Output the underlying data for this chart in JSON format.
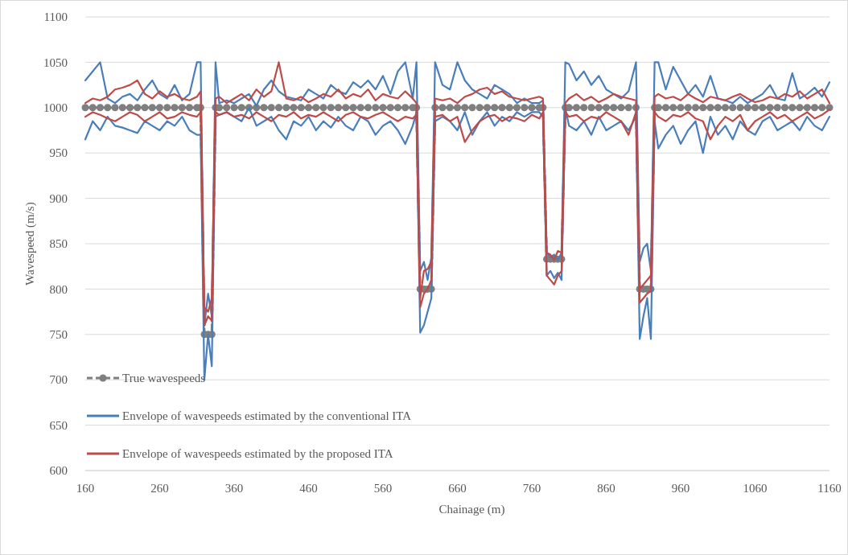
{
  "chart_data": {
    "type": "line",
    "xlabel": "Chainage (m)",
    "ylabel": "Wavespeed (m/s)",
    "x": [
      160,
      170,
      180,
      190,
      200,
      210,
      220,
      230,
      240,
      250,
      260,
      270,
      280,
      290,
      300,
      310,
      315,
      320,
      325,
      330,
      335,
      340,
      350,
      360,
      370,
      380,
      390,
      400,
      410,
      420,
      430,
      440,
      450,
      460,
      470,
      480,
      490,
      500,
      510,
      520,
      530,
      540,
      550,
      560,
      570,
      580,
      590,
      600,
      605,
      610,
      615,
      620,
      625,
      630,
      640,
      650,
      660,
      670,
      680,
      690,
      700,
      710,
      720,
      730,
      740,
      750,
      760,
      770,
      775,
      780,
      785,
      790,
      795,
      800,
      805,
      810,
      820,
      830,
      840,
      850,
      860,
      870,
      880,
      890,
      900,
      905,
      910,
      915,
      920,
      925,
      930,
      940,
      950,
      960,
      970,
      980,
      990,
      1000,
      1010,
      1020,
      1030,
      1040,
      1050,
      1060,
      1070,
      1080,
      1090,
      1100,
      1110,
      1120,
      1130,
      1140,
      1150,
      1160
    ],
    "series": [
      {
        "name": "True wavespeeds",
        "color": "#7f7f7f",
        "marker": "circle",
        "line_style": "dashed",
        "values": [
          1000,
          1000,
          1000,
          1000,
          1000,
          1000,
          1000,
          1000,
          1000,
          1000,
          1000,
          1000,
          1000,
          1000,
          1000,
          1000,
          1000,
          750,
          750,
          750,
          1000,
          1000,
          1000,
          1000,
          1000,
          1000,
          1000,
          1000,
          1000,
          1000,
          1000,
          1000,
          1000,
          1000,
          1000,
          1000,
          1000,
          1000,
          1000,
          1000,
          1000,
          1000,
          1000,
          1000,
          1000,
          1000,
          1000,
          1000,
          1000,
          800,
          800,
          800,
          800,
          1000,
          1000,
          1000,
          1000,
          1000,
          1000,
          1000,
          1000,
          1000,
          1000,
          1000,
          1000,
          1000,
          1000,
          1000,
          1000,
          833,
          833,
          833,
          833,
          833,
          1000,
          1000,
          1000,
          1000,
          1000,
          1000,
          1000,
          1000,
          1000,
          1000,
          1000,
          800,
          800,
          800,
          800,
          1000,
          1000,
          1000,
          1000,
          1000,
          1000,
          1000,
          1000,
          1000,
          1000,
          1000,
          1000,
          1000,
          1000,
          1000,
          1000,
          1000,
          1000,
          1000,
          1000,
          1000,
          1000,
          1000,
          1000,
          1000
        ]
      },
      {
        "name": "Envelope of wavespeeds estimated by the conventional ITA",
        "color": "#4a7ebb",
        "values": [
          1030,
          1040,
          1050,
          1010,
          1005,
          1012,
          1015,
          1008,
          1020,
          1030,
          1015,
          1010,
          1025,
          1008,
          1015,
          1050,
          1050,
          760,
          795,
          770,
          1050,
          1005,
          1008,
          1005,
          1010,
          1015,
          1002,
          1020,
          1030,
          1018,
          1012,
          1010,
          1008,
          1020,
          1015,
          1010,
          1025,
          1018,
          1015,
          1028,
          1022,
          1030,
          1020,
          1035,
          1015,
          1040,
          1050,
          1010,
          1050,
          820,
          830,
          810,
          835,
          1050,
          1025,
          1020,
          1050,
          1030,
          1020,
          1015,
          1010,
          1025,
          1020,
          1015,
          1005,
          1010,
          1005,
          1005,
          1008,
          840,
          835,
          838,
          832,
          840,
          1050,
          1048,
          1030,
          1040,
          1025,
          1035,
          1020,
          1015,
          1010,
          1018,
          1050,
          830,
          845,
          850,
          820,
          1050,
          1050,
          1020,
          1045,
          1030,
          1015,
          1025,
          1012,
          1035,
          1010,
          1008,
          1005,
          1012,
          1005,
          1010,
          1015,
          1025,
          1010,
          1008,
          1038,
          1010,
          1015,
          1022,
          1012,
          1028
        ]
      },
      {
        "color": "#4a7ebb",
        "values": [
          965,
          985,
          975,
          990,
          980,
          978,
          975,
          972,
          985,
          980,
          975,
          985,
          980,
          990,
          975,
          970,
          970,
          700,
          750,
          715,
          990,
          992,
          995,
          990,
          985,
          1000,
          980,
          985,
          990,
          975,
          965,
          985,
          980,
          990,
          975,
          985,
          978,
          990,
          980,
          975,
          990,
          985,
          970,
          980,
          985,
          975,
          960,
          980,
          995,
          752,
          760,
          775,
          790,
          985,
          990,
          985,
          975,
          995,
          970,
          985,
          995,
          980,
          990,
          985,
          995,
          990,
          995,
          995,
          990,
          815,
          820,
          812,
          818,
          810,
          1000,
          980,
          975,
          985,
          970,
          990,
          975,
          980,
          985,
          975,
          990,
          745,
          770,
          790,
          745,
          985,
          955,
          970,
          980,
          960,
          975,
          985,
          950,
          990,
          970,
          980,
          965,
          985,
          975,
          970,
          985,
          990,
          975,
          980,
          985,
          975,
          990,
          980,
          975,
          990
        ]
      },
      {
        "name": "Envelope of wavespeeds estimated by the proposed ITA",
        "color": "#be4b48",
        "values": [
          1005,
          1010,
          1008,
          1012,
          1020,
          1022,
          1025,
          1030,
          1015,
          1010,
          1018,
          1012,
          1015,
          1010,
          1008,
          1012,
          1018,
          780,
          775,
          790,
          1010,
          1012,
          1005,
          1010,
          1015,
          1008,
          1020,
          1012,
          1018,
          1050,
          1010,
          1008,
          1012,
          1006,
          1010,
          1015,
          1012,
          1020,
          1010,
          1015,
          1012,
          1020,
          1008,
          1015,
          1012,
          1010,
          1018,
          1010,
          1005,
          790,
          820,
          822,
          830,
          1010,
          1008,
          1010,
          1005,
          1012,
          1015,
          1020,
          1022,
          1015,
          1018,
          1012,
          1010,
          1008,
          1010,
          1012,
          1010,
          840,
          838,
          832,
          842,
          840,
          1005,
          1010,
          1015,
          1008,
          1012,
          1006,
          1010,
          1015,
          1012,
          1010,
          1008,
          800,
          805,
          810,
          815,
          1012,
          1015,
          1010,
          1012,
          1008,
          1015,
          1010,
          1006,
          1012,
          1010,
          1008,
          1012,
          1015,
          1010,
          1006,
          1008,
          1012,
          1010,
          1015,
          1012,
          1018,
          1010,
          1015,
          1020,
          1005
        ]
      },
      {
        "color": "#be4b48",
        "values": [
          990,
          995,
          992,
          988,
          985,
          990,
          995,
          992,
          985,
          990,
          995,
          988,
          990,
          995,
          992,
          990,
          995,
          760,
          770,
          765,
          995,
          992,
          995,
          990,
          992,
          988,
          995,
          990,
          985,
          992,
          990,
          995,
          988,
          992,
          990,
          995,
          990,
          985,
          992,
          995,
          990,
          988,
          992,
          995,
          990,
          985,
          990,
          988,
          992,
          780,
          795,
          800,
          810,
          990,
          992,
          985,
          990,
          962,
          975,
          985,
          990,
          992,
          985,
          990,
          988,
          985,
          992,
          988,
          995,
          815,
          810,
          805,
          815,
          820,
          995,
          990,
          992,
          985,
          990,
          988,
          995,
          990,
          985,
          970,
          995,
          785,
          790,
          795,
          798,
          995,
          990,
          985,
          992,
          990,
          995,
          988,
          985,
          965,
          980,
          990,
          985,
          992,
          975,
          985,
          990,
          995,
          988,
          992,
          985,
          990,
          995,
          988,
          992,
          998
        ]
      }
    ],
    "xlim": [
      160,
      1160
    ],
    "xticks": [
      160,
      260,
      360,
      460,
      560,
      660,
      760,
      860,
      960,
      1060,
      1160
    ],
    "ylim": [
      600,
      1100
    ],
    "yticks": [
      600,
      650,
      700,
      750,
      800,
      850,
      900,
      950,
      1000,
      1050,
      1100
    ],
    "grid": "y",
    "legend": "bottom left"
  }
}
